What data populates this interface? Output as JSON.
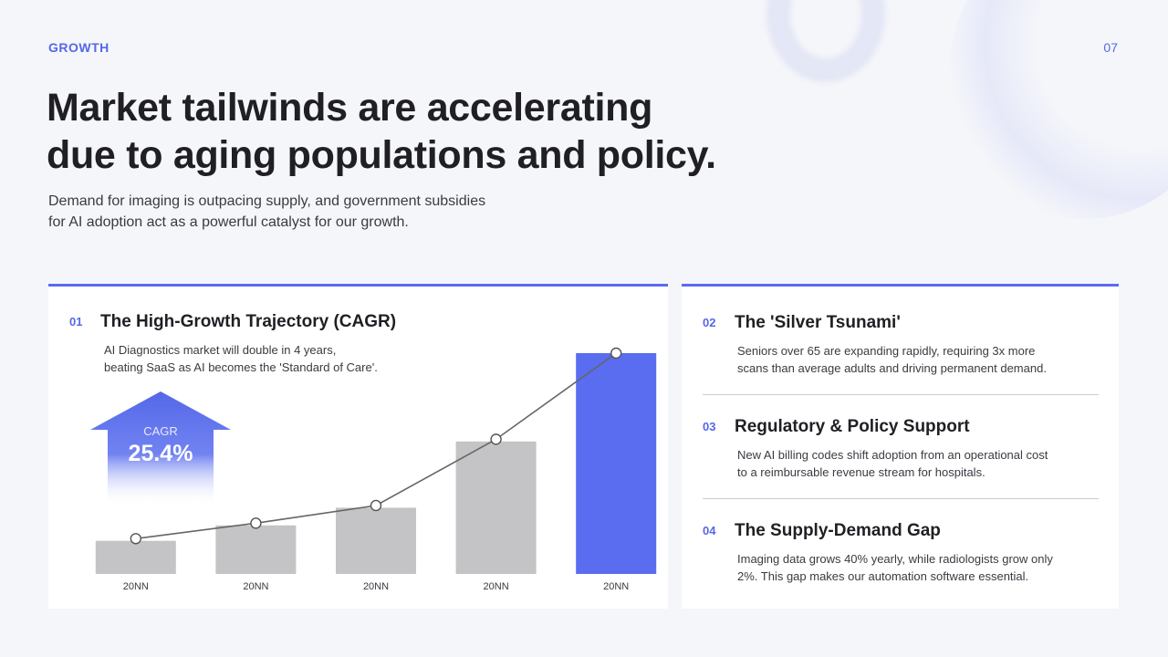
{
  "slide": {
    "eyebrow": "GROWTH",
    "page_number": "07",
    "headline_line1": "Market tailwinds are accelerating",
    "headline_line2": "due to aging populations and policy.",
    "subtitle_line1": "Demand for imaging is outpacing supply, and government subsidies",
    "subtitle_line2": "for AI adoption act as a powerful catalyst for our growth."
  },
  "left_card": {
    "number": "01",
    "title": "The High-Growth Trajectory (CAGR)",
    "desc_line1": "AI Diagnostics market will double in 4 years,",
    "desc_line2": "beating SaaS as AI becomes the 'Standard of Care'.",
    "cagr_label": "CAGR",
    "cagr_value": "25.4%"
  },
  "right_card": {
    "items": [
      {
        "number": "02",
        "title": "The 'Silver Tsunami'",
        "desc_line1": "Seniors over 65 are expanding rapidly, requiring 3x more",
        "desc_line2": "scans than average adults and driving permanent demand."
      },
      {
        "number": "03",
        "title": "Regulatory & Policy Support",
        "desc_line1": "New AI billing codes shift adoption from an operational cost",
        "desc_line2": "to a reimbursable revenue stream for hospitals."
      },
      {
        "number": "04",
        "title": "The Supply-Demand Gap",
        "desc_line1": "Imaging data grows 40% yearly, while radiologists grow only",
        "desc_line2": "2%. This gap makes our automation software essential."
      }
    ]
  },
  "colors": {
    "accent": "#5468e8",
    "bar_gray": "#c4c3c6",
    "bar_highlight": "#5a6cf0",
    "line": "#666666"
  },
  "chart_data": {
    "type": "bar",
    "title": "The High-Growth Trajectory (CAGR)",
    "categories": [
      "20NN",
      "20NN",
      "20NN",
      "20NN",
      "20NN"
    ],
    "values": [
      15,
      22,
      30,
      60,
      100
    ],
    "line_values": [
      16,
      23,
      31,
      61,
      100
    ],
    "highlight_index": 4,
    "xlabel": "",
    "ylabel": "",
    "ylim": [
      0,
      100
    ],
    "grid": false
  }
}
